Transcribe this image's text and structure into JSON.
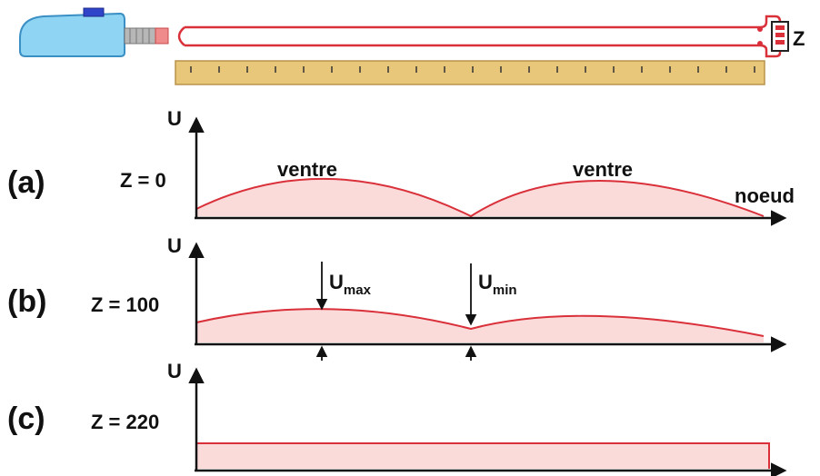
{
  "load_label": "Z",
  "axis_label": "U",
  "panels": [
    {
      "letter": "(a)",
      "z_label": "Z = 0",
      "annotations": [
        "ventre",
        "ventre",
        "noeud"
      ]
    },
    {
      "letter": "(b)",
      "z_label": "Z = 100",
      "umax": {
        "main": "U",
        "sub": "max"
      },
      "umin": {
        "main": "U",
        "sub": "min"
      }
    },
    {
      "letter": "(c)",
      "z_label": "Z = 220"
    }
  ],
  "colors": {
    "curve": "#d9303a",
    "fill": "#fbdada",
    "ruler": "#e8c77a",
    "generator": "#8fd4f2",
    "axis": "#111111"
  }
}
